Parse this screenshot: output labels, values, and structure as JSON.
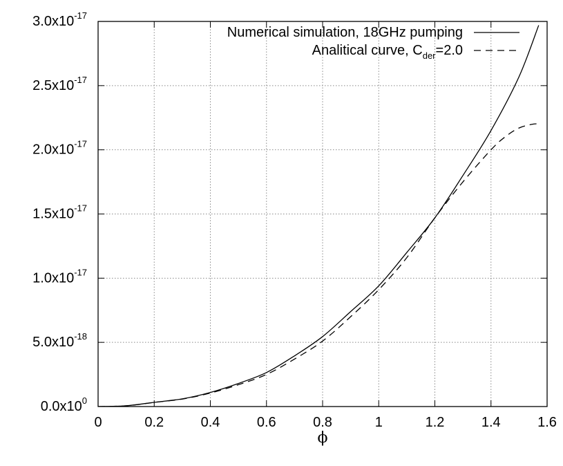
{
  "chart_data": {
    "type": "line",
    "title": "",
    "xlabel": "ϕ",
    "ylabel": "",
    "xlim": [
      0,
      1.6
    ],
    "ylim": [
      0,
      3e-17
    ],
    "grid": true,
    "legend_placement": "top-right",
    "x_ticks": [
      {
        "value": 0,
        "label": "0"
      },
      {
        "value": 0.2,
        "label": "0.2"
      },
      {
        "value": 0.4,
        "label": "0.4"
      },
      {
        "value": 0.6,
        "label": "0.6"
      },
      {
        "value": 0.8,
        "label": "0.8"
      },
      {
        "value": 1.0,
        "label": "1"
      },
      {
        "value": 1.2,
        "label": "1.2"
      },
      {
        "value": 1.4,
        "label": "1.4"
      },
      {
        "value": 1.6,
        "label": "1.6"
      }
    ],
    "y_ticks": [
      {
        "value": 0,
        "mantissa": "0.0x10",
        "exponent": "0"
      },
      {
        "value": 5e-18,
        "mantissa": "5.0x10",
        "exponent": "-18"
      },
      {
        "value": 1e-17,
        "mantissa": "1.0x10",
        "exponent": "-17"
      },
      {
        "value": 1.5e-17,
        "mantissa": "1.5x10",
        "exponent": "-17"
      },
      {
        "value": 2e-17,
        "mantissa": "2.0x10",
        "exponent": "-17"
      },
      {
        "value": 2.5e-17,
        "mantissa": "2.5x10",
        "exponent": "-17"
      },
      {
        "value": 3e-17,
        "mantissa": "3.0x10",
        "exponent": "-17"
      }
    ],
    "series": [
      {
        "name": "Numerical simulation, 18GHz pumping",
        "style": "solid",
        "color": "#000000",
        "x": [
          0,
          0.1,
          0.2,
          0.3,
          0.4,
          0.5,
          0.6,
          0.7,
          0.8,
          0.9,
          1.0,
          1.1,
          1.2,
          1.3,
          1.4,
          1.5,
          1.57
        ],
        "y": [
          0,
          6e-20,
          3.3e-19,
          6e-19,
          1.1e-18,
          1.8e-18,
          2.65e-18,
          3.95e-18,
          5.45e-18,
          7.4e-18,
          9.4e-18,
          1.2e-17,
          1.47e-17,
          1.8e-17,
          2.15e-17,
          2.57e-17,
          2.97e-17
        ]
      },
      {
        "name_parts": {
          "prefix": "Analitical curve, C",
          "subscript": "der",
          "suffix": "=2.0"
        },
        "style": "dashed",
        "color": "#000000",
        "x": [
          0,
          0.1,
          0.2,
          0.3,
          0.4,
          0.5,
          0.6,
          0.7,
          0.8,
          0.9,
          1.0,
          1.1,
          1.2,
          1.3,
          1.4,
          1.45,
          1.5,
          1.55,
          1.57
        ],
        "y": [
          0,
          6e-20,
          3.2e-19,
          5.8e-19,
          1.05e-18,
          1.7e-18,
          2.5e-18,
          3.7e-18,
          5.1e-18,
          7e-18,
          9.1e-18,
          1.16e-17,
          1.47e-17,
          1.75e-17,
          2e-17,
          2.1e-17,
          2.17e-17,
          2.2e-17,
          2.2e-17
        ]
      }
    ]
  }
}
